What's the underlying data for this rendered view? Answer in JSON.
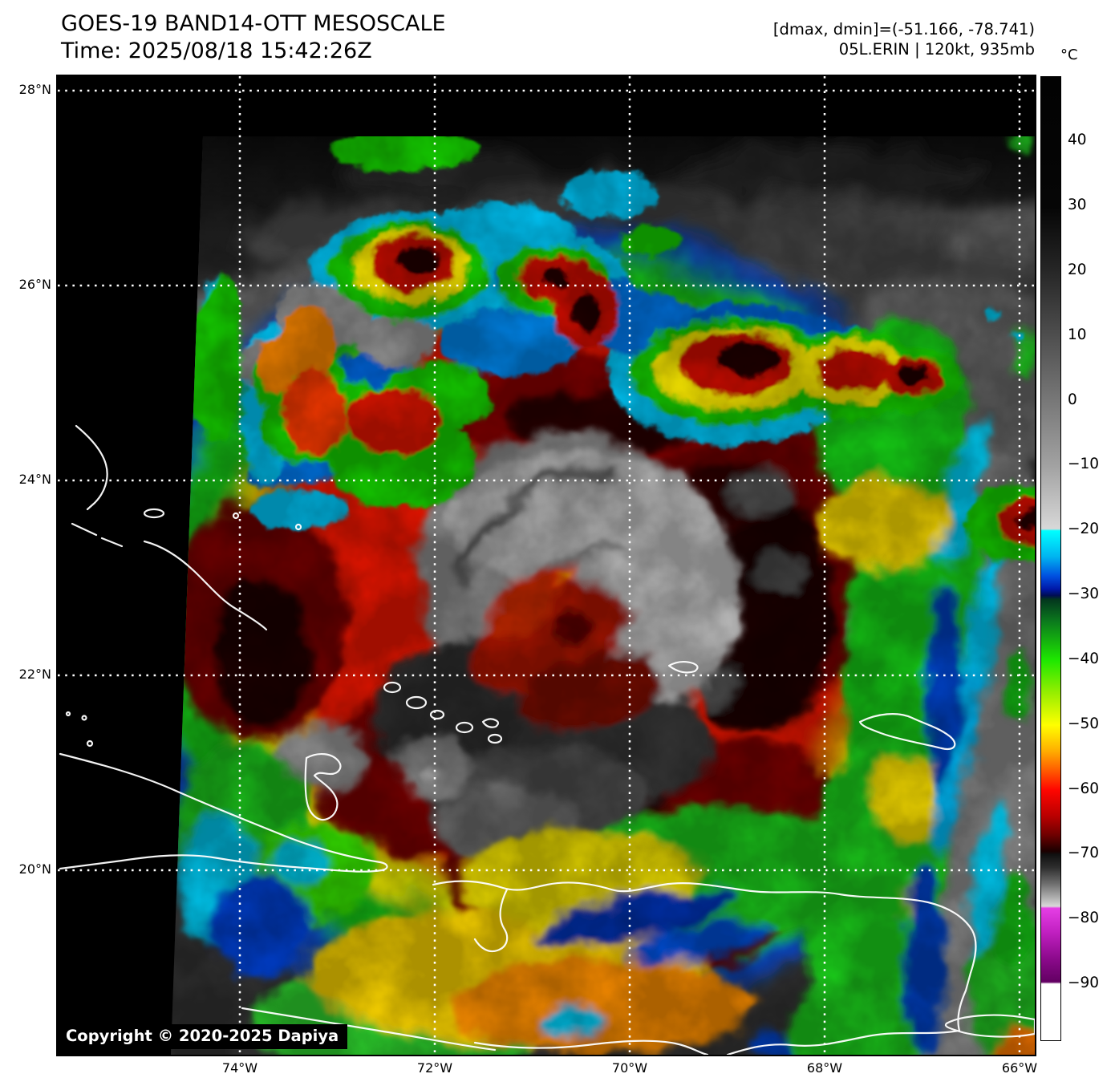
{
  "header": {
    "title_line1": "GOES-19 BAND14-OTT MESOSCALE",
    "title_line2": "Time: 2025/08/18 15:42:26Z",
    "info_line1": "[dmax, dmin]=(-51.166, -78.741)",
    "info_line2": "05L.ERIN | 120kt, 935mb"
  },
  "footer": {
    "copyright": "Copyright © 2020-2025 Dapiya"
  },
  "colorbar": {
    "unit": "°C",
    "range_top_c": 50.1,
    "range_bottom_c": -98.7,
    "ticks": [
      {
        "value": 40,
        "label": "40"
      },
      {
        "value": 30,
        "label": "30"
      },
      {
        "value": 20,
        "label": "20"
      },
      {
        "value": 10,
        "label": "10"
      },
      {
        "value": 0,
        "label": "0"
      },
      {
        "value": -10,
        "label": "−10"
      },
      {
        "value": -20,
        "label": "−20"
      },
      {
        "value": -30,
        "label": "−30"
      },
      {
        "value": -40,
        "label": "−40"
      },
      {
        "value": -50,
        "label": "−50"
      },
      {
        "value": -60,
        "label": "−60"
      },
      {
        "value": -70,
        "label": "−70"
      },
      {
        "value": -80,
        "label": "−80"
      },
      {
        "value": -90,
        "label": "−90"
      }
    ],
    "gradient_stops": [
      {
        "value": 50.1,
        "color": "#020202"
      },
      {
        "value": 30,
        "color": "#060606"
      },
      {
        "value": 20,
        "color": "#272727"
      },
      {
        "value": 10,
        "color": "#4f4f4f"
      },
      {
        "value": 0,
        "color": "#787878"
      },
      {
        "value": -10,
        "color": "#a2a2a2"
      },
      {
        "value": -19.7,
        "color": "#d8d8d8"
      },
      {
        "value": -20,
        "color": "#00ffff"
      },
      {
        "value": -24,
        "color": "#00b4f0"
      },
      {
        "value": -27,
        "color": "#0050e0"
      },
      {
        "value": -29,
        "color": "#0018a8"
      },
      {
        "value": -30,
        "color": "#000d52"
      },
      {
        "value": -30.6,
        "color": "#03361e"
      },
      {
        "value": -34,
        "color": "#0b7a1d"
      },
      {
        "value": -40,
        "color": "#1ee800"
      },
      {
        "value": -45,
        "color": "#96ee00"
      },
      {
        "value": -50,
        "color": "#ffff00"
      },
      {
        "value": -54,
        "color": "#ffae00"
      },
      {
        "value": -57,
        "color": "#ff5c00"
      },
      {
        "value": -60,
        "color": "#ff0600"
      },
      {
        "value": -64,
        "color": "#bb0000"
      },
      {
        "value": -67,
        "color": "#6e0000"
      },
      {
        "value": -69.5,
        "color": "#1b0000"
      },
      {
        "value": -70,
        "color": "#101010"
      },
      {
        "value": -72,
        "color": "#2e2e2e"
      },
      {
        "value": -74.5,
        "color": "#6e6e6e"
      },
      {
        "value": -77,
        "color": "#b9b9b9"
      },
      {
        "value": -78,
        "color": "#d9d9d9"
      },
      {
        "value": -78.3,
        "color": "#e53ee5"
      },
      {
        "value": -82,
        "color": "#c120c1"
      },
      {
        "value": -86,
        "color": "#8d0a8d"
      },
      {
        "value": -89.7,
        "color": "#620062"
      },
      {
        "value": -90,
        "color": "#ffffff"
      },
      {
        "value": -98.7,
        "color": "#ffffff"
      }
    ]
  },
  "axes": {
    "lat_ticks": [
      {
        "value": 28,
        "label": "28°N"
      },
      {
        "value": 26,
        "label": "26°N"
      },
      {
        "value": 24,
        "label": "24°N"
      },
      {
        "value": 22,
        "label": "22°N"
      },
      {
        "value": 20,
        "label": "20°N"
      }
    ],
    "lon_ticks": [
      {
        "value": 74,
        "label": "74°W"
      },
      {
        "value": 72,
        "label": "72°W"
      },
      {
        "value": 70,
        "label": "70°W"
      },
      {
        "value": 68,
        "label": "68°W"
      },
      {
        "value": 66,
        "label": "66°W"
      }
    ]
  }
}
